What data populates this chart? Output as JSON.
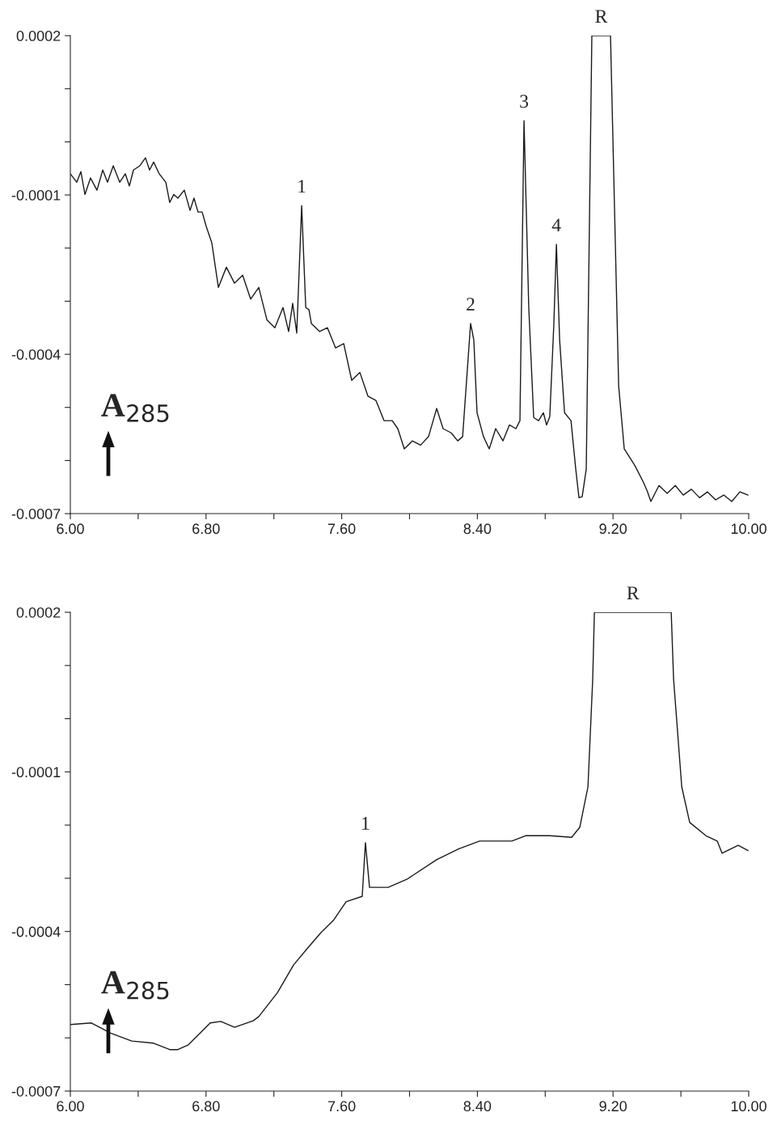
{
  "chart_data": [
    {
      "type": "line",
      "xlim": [
        6.0,
        10.0
      ],
      "ylim": [
        -0.0007,
        0.0002
      ],
      "xticks": [
        {
          "value": 6.0,
          "label": "6.00"
        },
        {
          "value": 6.4,
          "label": null
        },
        {
          "value": 6.8,
          "label": "6.80"
        },
        {
          "value": 7.2,
          "label": null
        },
        {
          "value": 7.6,
          "label": "7.60"
        },
        {
          "value": 8.0,
          "label": null
        },
        {
          "value": 8.4,
          "label": "8.40"
        },
        {
          "value": 8.8,
          "label": null
        },
        {
          "value": 9.2,
          "label": "9.20"
        },
        {
          "value": 9.6,
          "label": null
        },
        {
          "value": 10.0,
          "label": "10.00"
        }
      ],
      "yticks": [
        {
          "value": 0.0002,
          "label": "0.0002"
        },
        {
          "value": 0.0001,
          "label": null
        },
        {
          "value": 0.0,
          "label": null
        },
        {
          "value": -0.0001,
          "label": "-0.0001"
        },
        {
          "value": -0.0002,
          "label": null
        },
        {
          "value": -0.0003,
          "label": null
        },
        {
          "value": -0.0004,
          "label": "-0.0004"
        },
        {
          "value": -0.0005,
          "label": null
        },
        {
          "value": -0.0006,
          "label": null
        },
        {
          "value": -0.0007,
          "label": "-0.0007"
        }
      ],
      "grid": false,
      "legend": false,
      "series": [
        {
          "color": "#1a1a1a",
          "x": [
            6.0,
            6.038,
            6.062,
            6.086,
            6.119,
            6.157,
            6.191,
            6.219,
            6.253,
            6.291,
            6.324,
            6.348,
            6.372,
            6.41,
            6.443,
            6.467,
            6.491,
            6.524,
            6.563,
            6.586,
            6.61,
            6.634,
            6.672,
            6.706,
            6.729,
            6.753,
            6.777,
            6.801,
            6.834,
            6.873,
            6.92,
            6.968,
            7.016,
            7.063,
            7.111,
            7.159,
            7.206,
            7.254,
            7.287,
            7.311,
            7.335,
            7.364,
            7.388,
            7.407,
            7.421,
            7.469,
            7.516,
            7.564,
            7.612,
            7.659,
            7.707,
            7.755,
            7.802,
            7.85,
            7.898,
            7.931,
            7.969,
            8.017,
            8.065,
            8.112,
            8.16,
            8.198,
            8.246,
            8.284,
            8.313,
            8.36,
            8.379,
            8.398,
            8.436,
            8.47,
            8.508,
            8.551,
            8.589,
            8.627,
            8.651,
            8.675,
            8.703,
            8.732,
            8.761,
            8.789,
            8.808,
            8.827,
            8.851,
            8.866,
            8.885,
            8.914,
            8.952,
            8.98,
            8.999,
            9.018,
            9.042,
            9.075,
            9.185,
            9.233,
            9.266,
            9.328,
            9.376,
            9.4,
            9.423,
            9.471,
            9.519,
            9.567,
            9.614,
            9.662,
            9.71,
            9.757,
            9.805,
            9.853,
            9.9,
            9.948,
            9.996
          ],
          "values": [
            -6e-05,
            -7.6e-05,
            -5.6e-05,
            -9.9e-05,
            -6.8e-05,
            -9.1e-05,
            -5.3e-05,
            -7.6e-05,
            -4.5e-05,
            -7.6e-05,
            -6e-05,
            -8.3e-05,
            -5.3e-05,
            -4.5e-05,
            -3e-05,
            -5.3e-05,
            -3.8e-05,
            -6e-05,
            -7.6e-05,
            -0.000114,
            -9.9e-05,
            -0.000106,
            -9.1e-05,
            -0.000129,
            -0.000106,
            -0.000132,
            -0.000132,
            -0.000159,
            -0.00019,
            -0.000274,
            -0.000236,
            -0.000266,
            -0.000251,
            -0.000296,
            -0.000274,
            -0.000335,
            -0.00035,
            -0.000312,
            -0.000357,
            -0.000304,
            -0.00036,
            -0.00012,
            -0.000312,
            -0.000316,
            -0.000342,
            -0.000357,
            -0.00035,
            -0.000388,
            -0.00038,
            -0.000449,
            -0.000434,
            -0.000479,
            -0.000487,
            -0.000525,
            -0.000525,
            -0.00054,
            -0.000578,
            -0.000563,
            -0.000571,
            -0.000555,
            -0.000502,
            -0.00054,
            -0.000548,
            -0.000563,
            -0.000555,
            -0.000342,
            -0.000373,
            -0.00051,
            -0.000555,
            -0.000578,
            -0.00054,
            -0.000563,
            -0.000533,
            -0.00054,
            -0.000525,
            4e-05,
            -0.000312,
            -0.000519,
            -0.000525,
            -0.00051,
            -0.000533,
            -0.000517,
            -0.000342,
            -0.000193,
            -0.000373,
            -0.00051,
            -0.000525,
            -0.000616,
            -0.00067,
            -0.000668,
            -0.000616,
            0.0002,
            0.0002,
            -0.000459,
            -0.000578,
            -0.000609,
            -0.000639,
            -0.000656,
            -0.000677,
            -0.000647,
            -0.000662,
            -0.000647,
            -0.000665,
            -0.000654,
            -0.00067,
            -0.000659,
            -0.000674,
            -0.000665,
            -0.000677,
            -0.000659,
            -0.000665
          ]
        }
      ],
      "annotations": [
        {
          "text": "1",
          "x": 7.364,
          "y": -0.00012
        },
        {
          "text": "2",
          "x": 8.36,
          "y": -0.000342
        },
        {
          "text": "3",
          "x": 8.675,
          "y": 4e-05
        },
        {
          "text": "4",
          "x": 8.866,
          "y": -0.000193
        },
        {
          "text": "R",
          "x": 9.13,
          "y": 0.0002
        },
        "A$_{285}$"
      ]
    },
    {
      "type": "line",
      "xlim": [
        6.0,
        10.0
      ],
      "ylim": [
        -0.0007,
        0.0002
      ],
      "xticks": [
        {
          "value": 6.0,
          "label": "6.00"
        },
        {
          "value": 6.4,
          "label": null
        },
        {
          "value": 6.8,
          "label": "6.80"
        },
        {
          "value": 7.2,
          "label": null
        },
        {
          "value": 7.6,
          "label": "7.60"
        },
        {
          "value": 8.0,
          "label": null
        },
        {
          "value": 8.4,
          "label": "8.40"
        },
        {
          "value": 8.8,
          "label": null
        },
        {
          "value": 9.2,
          "label": "9.20"
        },
        {
          "value": 9.6,
          "label": null
        },
        {
          "value": 10.0,
          "label": "10.00"
        }
      ],
      "yticks": [
        {
          "value": 0.0002,
          "label": "0.0002"
        },
        {
          "value": 0.0001,
          "label": null
        },
        {
          "value": 0.0,
          "label": null
        },
        {
          "value": -0.0001,
          "label": "-0.0001"
        },
        {
          "value": -0.0002,
          "label": null
        },
        {
          "value": -0.0003,
          "label": null
        },
        {
          "value": -0.0004,
          "label": "-0.0004"
        },
        {
          "value": -0.0005,
          "label": null
        },
        {
          "value": -0.0006,
          "label": null
        },
        {
          "value": -0.0007,
          "label": "-0.0007"
        }
      ],
      "grid": false,
      "legend": false,
      "series": [
        {
          "color": "#1a1a1a",
          "x": [
            6.0,
            6.124,
            6.238,
            6.362,
            6.491,
            6.586,
            6.634,
            6.696,
            6.825,
            6.887,
            6.968,
            7.078,
            7.111,
            7.221,
            7.316,
            7.397,
            7.478,
            7.554,
            7.626,
            7.721,
            7.74,
            7.764,
            7.874,
            7.984,
            8.16,
            8.289,
            8.413,
            8.603,
            8.684,
            8.827,
            8.956,
            9.004,
            9.052,
            9.08,
            9.09,
            9.543,
            9.557,
            9.605,
            9.652,
            9.748,
            9.814,
            9.843,
            9.938,
            9.996
          ],
          "values": [
            -0.000575,
            -0.000572,
            -0.000591,
            -0.000606,
            -0.00061,
            -0.000622,
            -0.000622,
            -0.000613,
            -0.000572,
            -0.000569,
            -0.00058,
            -0.000568,
            -0.00056,
            -0.000515,
            -0.000463,
            -0.000432,
            -0.000402,
            -0.000378,
            -0.000344,
            -0.000334,
            -0.000233,
            -0.000317,
            -0.000317,
            -0.000302,
            -0.000265,
            -0.000245,
            -0.00023,
            -0.00023,
            -0.00022,
            -0.00022,
            -0.000223,
            -0.000204,
            -0.000128,
            7.4e-05,
            0.0002,
            0.0002,
            7.4e-05,
            -0.000128,
            -0.000195,
            -0.00022,
            -0.00023,
            -0.000253,
            -0.000238,
            -0.000248
          ]
        }
      ],
      "annotations": [
        {
          "text": "1",
          "x": 7.74,
          "y": -0.000233
        },
        {
          "text": "R",
          "x": 9.317,
          "y": 0.0002
        },
        "A$_{285}$"
      ]
    }
  ]
}
